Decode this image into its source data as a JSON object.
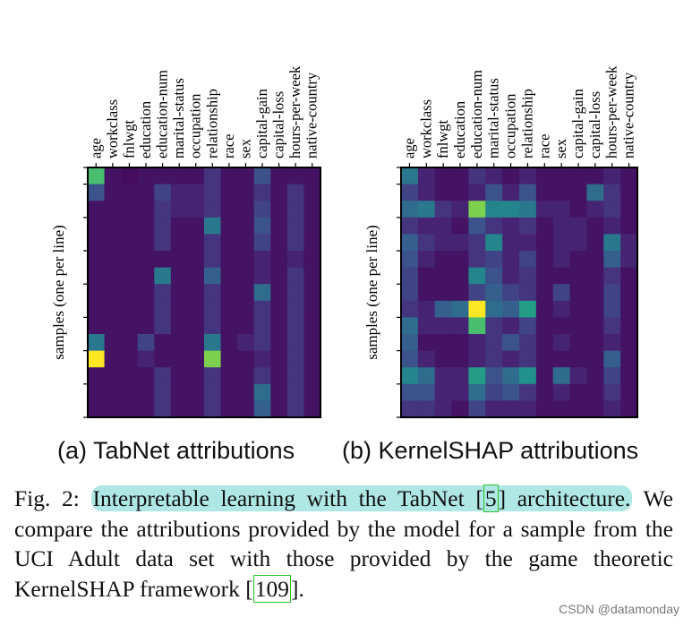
{
  "chart_data": [
    {
      "type": "heatmap",
      "title": "(a) TabNet attributions",
      "ylabel": "samples (one per line)",
      "features": [
        "age",
        "workclass",
        "fnlwgt",
        "education",
        "education-num",
        "marital-status",
        "occupation",
        "relationship",
        "race",
        "sex",
        "capital-gain",
        "capital-loss",
        "hours-per-week",
        "native-country"
      ],
      "colormap": [
        "#440154",
        "#472d7b",
        "#3b528b",
        "#2c728e",
        "#21918c",
        "#28ae80",
        "#5ec962",
        "#addc30",
        "#fde725"
      ],
      "values": [
        [
          0.7,
          0.05,
          0.03,
          0.05,
          0.05,
          0.05,
          0.05,
          0.15,
          0.05,
          0.05,
          0.25,
          0.05,
          0.05,
          0.05
        ],
        [
          0.25,
          0.05,
          0.05,
          0.05,
          0.2,
          0.1,
          0.1,
          0.15,
          0.05,
          0.05,
          0.15,
          0.05,
          0.15,
          0.05
        ],
        [
          0.05,
          0.05,
          0.05,
          0.05,
          0.15,
          0.1,
          0.1,
          0.15,
          0.05,
          0.05,
          0.2,
          0.05,
          0.15,
          0.05
        ],
        [
          0.05,
          0.05,
          0.05,
          0.05,
          0.15,
          0.05,
          0.05,
          0.4,
          0.05,
          0.05,
          0.25,
          0.05,
          0.15,
          0.05
        ],
        [
          0.05,
          0.05,
          0.05,
          0.05,
          0.15,
          0.05,
          0.05,
          0.15,
          0.05,
          0.05,
          0.2,
          0.05,
          0.15,
          0.05
        ],
        [
          0.05,
          0.05,
          0.05,
          0.05,
          0.05,
          0.05,
          0.05,
          0.15,
          0.05,
          0.05,
          0.1,
          0.05,
          0.1,
          0.05
        ],
        [
          0.05,
          0.05,
          0.05,
          0.05,
          0.4,
          0.05,
          0.05,
          0.3,
          0.05,
          0.05,
          0.1,
          0.05,
          0.15,
          0.05
        ],
        [
          0.05,
          0.05,
          0.05,
          0.05,
          0.15,
          0.05,
          0.05,
          0.15,
          0.05,
          0.05,
          0.35,
          0.05,
          0.15,
          0.05
        ],
        [
          0.05,
          0.05,
          0.05,
          0.05,
          0.15,
          0.05,
          0.05,
          0.15,
          0.05,
          0.05,
          0.15,
          0.05,
          0.15,
          0.05
        ],
        [
          0.05,
          0.05,
          0.05,
          0.05,
          0.15,
          0.05,
          0.05,
          0.15,
          0.05,
          0.05,
          0.15,
          0.05,
          0.15,
          0.05
        ],
        [
          0.4,
          0.05,
          0.05,
          0.2,
          0.05,
          0.05,
          0.05,
          0.4,
          0.05,
          0.1,
          0.15,
          0.05,
          0.15,
          0.05
        ],
        [
          1.0,
          0.05,
          0.05,
          0.1,
          0.05,
          0.05,
          0.05,
          0.8,
          0.05,
          0.05,
          0.1,
          0.05,
          0.15,
          0.05
        ],
        [
          0.05,
          0.05,
          0.05,
          0.05,
          0.15,
          0.05,
          0.05,
          0.15,
          0.05,
          0.05,
          0.15,
          0.05,
          0.15,
          0.05
        ],
        [
          0.05,
          0.05,
          0.05,
          0.05,
          0.15,
          0.05,
          0.05,
          0.15,
          0.05,
          0.05,
          0.35,
          0.05,
          0.15,
          0.05
        ],
        [
          0.05,
          0.05,
          0.05,
          0.05,
          0.15,
          0.05,
          0.05,
          0.15,
          0.05,
          0.05,
          0.3,
          0.05,
          0.15,
          0.05
        ]
      ]
    },
    {
      "type": "heatmap",
      "title": "(b) KernelSHAP attributions",
      "ylabel": "samples (one per line)",
      "features": [
        "age",
        "workclass",
        "fnlwgt",
        "education",
        "education-num",
        "marital-status",
        "occupation",
        "relationship",
        "race",
        "sex",
        "capital-gain",
        "capital-loss",
        "hours-per-week",
        "native-country"
      ],
      "colormap": [
        "#440154",
        "#472d7b",
        "#3b528b",
        "#2c728e",
        "#21918c",
        "#28ae80",
        "#5ec962",
        "#addc30",
        "#fde725"
      ],
      "values": [
        [
          0.4,
          0.1,
          0.05,
          0.05,
          0.15,
          0.1,
          0.05,
          0.1,
          0.05,
          0.05,
          0.05,
          0.05,
          0.1,
          0.05
        ],
        [
          0.2,
          0.1,
          0.05,
          0.05,
          0.1,
          0.25,
          0.1,
          0.25,
          0.05,
          0.05,
          0.05,
          0.35,
          0.15,
          0.05
        ],
        [
          0.35,
          0.4,
          0.15,
          0.1,
          0.8,
          0.45,
          0.45,
          0.4,
          0.1,
          0.1,
          0.05,
          0.1,
          0.15,
          0.05
        ],
        [
          0.15,
          0.1,
          0.1,
          0.05,
          0.25,
          0.15,
          0.1,
          0.15,
          0.05,
          0.1,
          0.1,
          0.05,
          0.1,
          0.05
        ],
        [
          0.3,
          0.15,
          0.1,
          0.1,
          0.15,
          0.45,
          0.1,
          0.1,
          0.05,
          0.1,
          0.1,
          0.05,
          0.4,
          0.1
        ],
        [
          0.25,
          0.1,
          0.05,
          0.05,
          0.15,
          0.2,
          0.1,
          0.2,
          0.05,
          0.1,
          0.05,
          0.05,
          0.3,
          0.1
        ],
        [
          0.2,
          0.05,
          0.05,
          0.05,
          0.45,
          0.25,
          0.1,
          0.15,
          0.05,
          0.05,
          0.05,
          0.05,
          0.15,
          0.05
        ],
        [
          0.2,
          0.05,
          0.05,
          0.05,
          0.2,
          0.3,
          0.2,
          0.15,
          0.05,
          0.2,
          0.05,
          0.05,
          0.2,
          0.05
        ],
        [
          0.15,
          0.1,
          0.3,
          0.35,
          1.0,
          0.35,
          0.3,
          0.55,
          0.05,
          0.1,
          0.05,
          0.05,
          0.2,
          0.05
        ],
        [
          0.35,
          0.1,
          0.1,
          0.1,
          0.7,
          0.15,
          0.1,
          0.2,
          0.05,
          0.05,
          0.05,
          0.05,
          0.15,
          0.05
        ],
        [
          0.3,
          0.05,
          0.05,
          0.05,
          0.1,
          0.15,
          0.25,
          0.15,
          0.05,
          0.1,
          0.05,
          0.05,
          0.1,
          0.05
        ],
        [
          0.25,
          0.1,
          0.05,
          0.05,
          0.1,
          0.15,
          0.1,
          0.15,
          0.05,
          0.05,
          0.05,
          0.05,
          0.3,
          0.05
        ],
        [
          0.45,
          0.35,
          0.1,
          0.1,
          0.55,
          0.25,
          0.35,
          0.5,
          0.05,
          0.35,
          0.1,
          0.05,
          0.2,
          0.05
        ],
        [
          0.25,
          0.25,
          0.1,
          0.1,
          0.35,
          0.2,
          0.25,
          0.15,
          0.05,
          0.1,
          0.05,
          0.05,
          0.15,
          0.05
        ],
        [
          0.15,
          0.15,
          0.1,
          0.05,
          0.2,
          0.1,
          0.1,
          0.1,
          0.05,
          0.05,
          0.05,
          0.05,
          0.1,
          0.05
        ]
      ]
    }
  ],
  "caption": {
    "label": "Fig. 2:",
    "highlight_before": "Interpretable learning with the TabNet [",
    "highlight_ref": "5",
    "highlight_after": "] architecture.",
    "body": "We compare the attributions provided by the model for a sample from the UCI Adult data set with those provided by the game theoretic KernelSHAP framework [",
    "ref2": "109",
    "end": "]."
  },
  "watermark": "CSDN @datamonday"
}
